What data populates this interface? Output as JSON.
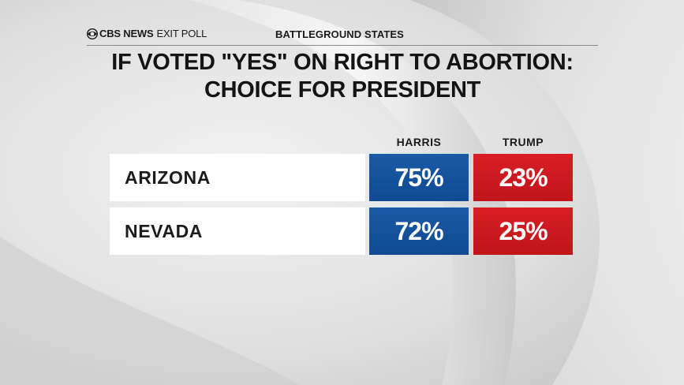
{
  "header": {
    "brand": "CBS NEWS",
    "brand_suffix": "EXIT POLL",
    "section": "BATTLEGROUND STATES"
  },
  "title_line1": "IF VOTED \"YES\" ON RIGHT TO ABORTION:",
  "title_line2": "CHOICE FOR PRESIDENT",
  "colors": {
    "harris": "#1558a6",
    "trump": "#d21a20",
    "background": "#d9d9d9"
  },
  "chart_data": {
    "type": "table",
    "title": "IF VOTED \"YES\" ON RIGHT TO ABORTION: CHOICE FOR PRESIDENT",
    "columns": [
      "HARRIS",
      "TRUMP"
    ],
    "rows": [
      {
        "state": "ARIZONA",
        "harris": "75%",
        "trump": "23%"
      },
      {
        "state": "NEVADA",
        "harris": "72%",
        "trump": "25%"
      }
    ],
    "series": [
      {
        "name": "HARRIS",
        "values": [
          75,
          72
        ]
      },
      {
        "name": "TRUMP",
        "values": [
          23,
          25
        ]
      }
    ],
    "categories": [
      "ARIZONA",
      "NEVADA"
    ],
    "unit": "%"
  }
}
